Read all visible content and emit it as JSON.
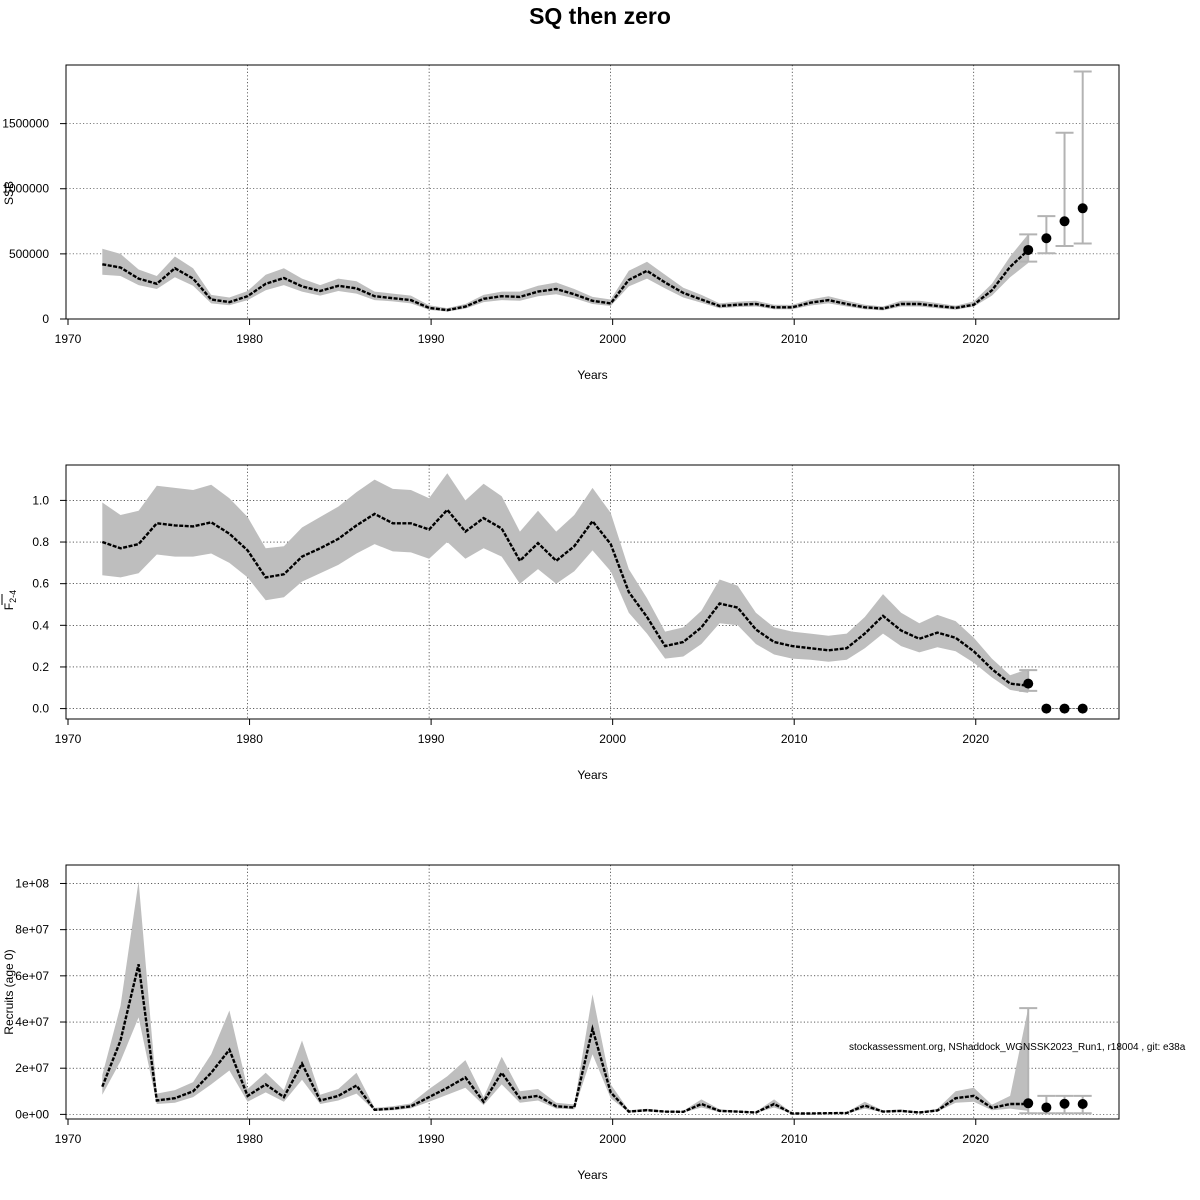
{
  "title": "SQ then zero",
  "credit": "stockassessment.org, NShaddock_WGNSSK2023_Run1, r18004 , git: e38a",
  "chart_data": [
    {
      "type": "line",
      "id": "ssb",
      "ylabel": "SSB",
      "xlabel": "Years",
      "xlim": [
        1970,
        2028
      ],
      "ylim": [
        0,
        1950000
      ],
      "grid": true,
      "xticks": [
        1970,
        1980,
        1990,
        2000,
        2010,
        2020
      ],
      "yticks": [
        0,
        500000,
        1000000,
        1500000
      ],
      "ytick_labels": [
        "0",
        "500000",
        "1000000",
        "1500000"
      ],
      "series": [
        {
          "x": [
            1972,
            1973,
            1974,
            1975,
            1976,
            1977,
            1978,
            1979,
            1980,
            1981,
            1982,
            1983,
            1984,
            1985,
            1986,
            1987,
            1988,
            1989,
            1990,
            1991,
            1992,
            1993,
            1994,
            1995,
            1996,
            1997,
            1998,
            1999,
            2000,
            2001,
            2002,
            2003,
            2004,
            2005,
            2006,
            2007,
            2008,
            2009,
            2010,
            2011,
            2012,
            2013,
            2014,
            2015,
            2016,
            2017,
            2018,
            2019,
            2020,
            2021,
            2022,
            2023
          ],
          "estimate": [
            420000,
            395000,
            310000,
            270000,
            390000,
            310000,
            150000,
            130000,
            175000,
            270000,
            315000,
            250000,
            215000,
            255000,
            235000,
            175000,
            160000,
            145000,
            85000,
            68000,
            95000,
            155000,
            175000,
            170000,
            210000,
            230000,
            190000,
            140000,
            120000,
            300000,
            370000,
            280000,
            200000,
            150000,
            100000,
            110000,
            115000,
            90000,
            90000,
            125000,
            145000,
            115000,
            90000,
            80000,
            115000,
            115000,
            100000,
            85000,
            110000,
            220000,
            400000,
            530000
          ],
          "lower": [
            340000,
            330000,
            260000,
            230000,
            320000,
            255000,
            120000,
            105000,
            145000,
            220000,
            260000,
            210000,
            180000,
            215000,
            195000,
            145000,
            135000,
            120000,
            70000,
            57000,
            80000,
            130000,
            145000,
            140000,
            175000,
            190000,
            160000,
            115000,
            100000,
            250000,
            310000,
            235000,
            165000,
            125000,
            83000,
            92000,
            96000,
            75000,
            75000,
            104000,
            120000,
            96000,
            75000,
            66000,
            96000,
            96000,
            83000,
            71000,
            95000,
            180000,
            320000,
            430000
          ],
          "upper": [
            540000,
            500000,
            380000,
            330000,
            480000,
            390000,
            185000,
            165000,
            215000,
            340000,
            390000,
            310000,
            260000,
            310000,
            290000,
            210000,
            195000,
            180000,
            105000,
            84000,
            115000,
            185000,
            210000,
            210000,
            255000,
            280000,
            230000,
            170000,
            150000,
            370000,
            440000,
            340000,
            240000,
            185000,
            120000,
            132000,
            140000,
            110000,
            108000,
            150000,
            175000,
            140000,
            110000,
            96000,
            140000,
            140000,
            122000,
            102000,
            135000,
            270000,
            480000,
            650000
          ]
        }
      ],
      "forecast": [
        {
          "year": 2023,
          "value": 530000,
          "low": 440000,
          "high": 650000
        },
        {
          "year": 2024,
          "value": 620000,
          "low": 505000,
          "high": 790000
        },
        {
          "year": 2025,
          "value": 750000,
          "low": 560000,
          "high": 1430000
        },
        {
          "year": 2026,
          "value": 850000,
          "low": 580000,
          "high": 1900000
        }
      ]
    },
    {
      "type": "line",
      "id": "fbar",
      "ylabel": "F",
      "ylabel_sub": "2-4",
      "xlabel": "Years",
      "xlim": [
        1970,
        2028
      ],
      "ylim": [
        -0.05,
        1.17
      ],
      "grid": true,
      "xticks": [
        1970,
        1980,
        1990,
        2000,
        2010,
        2020
      ],
      "yticks": [
        0,
        0.2,
        0.4,
        0.6,
        0.8,
        1.0
      ],
      "ytick_labels": [
        "0.0",
        "0.2",
        "0.4",
        "0.6",
        "0.8",
        "1.0"
      ],
      "series": [
        {
          "x": [
            1972,
            1973,
            1974,
            1975,
            1976,
            1977,
            1978,
            1979,
            1980,
            1981,
            1982,
            1983,
            1984,
            1985,
            1986,
            1987,
            1988,
            1989,
            1990,
            1991,
            1992,
            1993,
            1994,
            1995,
            1996,
            1997,
            1998,
            1999,
            2000,
            2001,
            2002,
            2003,
            2004,
            2005,
            2006,
            2007,
            2008,
            2009,
            2010,
            2011,
            2012,
            2013,
            2014,
            2015,
            2016,
            2017,
            2018,
            2019,
            2020,
            2021,
            2022,
            2023
          ],
          "estimate": [
            0.8,
            0.77,
            0.79,
            0.89,
            0.88,
            0.875,
            0.895,
            0.84,
            0.76,
            0.63,
            0.645,
            0.73,
            0.77,
            0.815,
            0.88,
            0.935,
            0.89,
            0.89,
            0.86,
            0.955,
            0.85,
            0.915,
            0.865,
            0.71,
            0.795,
            0.71,
            0.78,
            0.9,
            0.79,
            0.56,
            0.44,
            0.3,
            0.32,
            0.39,
            0.505,
            0.485,
            0.38,
            0.32,
            0.3,
            0.29,
            0.28,
            0.29,
            0.36,
            0.445,
            0.375,
            0.335,
            0.365,
            0.34,
            0.275,
            0.19,
            0.12,
            0.11
          ],
          "lower": [
            0.64,
            0.63,
            0.65,
            0.74,
            0.73,
            0.73,
            0.745,
            0.7,
            0.63,
            0.52,
            0.535,
            0.61,
            0.65,
            0.69,
            0.745,
            0.79,
            0.755,
            0.75,
            0.72,
            0.8,
            0.72,
            0.77,
            0.73,
            0.6,
            0.67,
            0.6,
            0.66,
            0.76,
            0.66,
            0.46,
            0.36,
            0.24,
            0.25,
            0.31,
            0.41,
            0.4,
            0.31,
            0.26,
            0.24,
            0.235,
            0.225,
            0.235,
            0.29,
            0.36,
            0.3,
            0.27,
            0.295,
            0.275,
            0.22,
            0.15,
            0.09,
            0.075
          ],
          "upper": [
            0.99,
            0.93,
            0.95,
            1.07,
            1.06,
            1.05,
            1.075,
            1.01,
            0.92,
            0.77,
            0.78,
            0.87,
            0.92,
            0.97,
            1.04,
            1.1,
            1.055,
            1.05,
            1.01,
            1.13,
            1.0,
            1.08,
            1.02,
            0.85,
            0.95,
            0.85,
            0.93,
            1.06,
            0.94,
            0.67,
            0.53,
            0.37,
            0.39,
            0.47,
            0.62,
            0.59,
            0.46,
            0.39,
            0.37,
            0.36,
            0.35,
            0.36,
            0.44,
            0.55,
            0.46,
            0.41,
            0.45,
            0.42,
            0.34,
            0.24,
            0.16,
            0.19
          ]
        }
      ],
      "forecast": [
        {
          "year": 2023,
          "value": 0.12,
          "low": 0.085,
          "high": 0.185
        },
        {
          "year": 2024,
          "value": 0.0,
          "low": 0.0,
          "high": 0.0
        },
        {
          "year": 2025,
          "value": 0.0,
          "low": 0.0,
          "high": 0.0
        },
        {
          "year": 2026,
          "value": 0.0,
          "low": 0.0,
          "high": 0.0
        }
      ]
    },
    {
      "type": "line",
      "id": "recruits",
      "ylabel": "Recruits (age 0)",
      "xlabel": "Years",
      "xlim": [
        1970,
        2028
      ],
      "ylim": [
        -2000000,
        108000000
      ],
      "grid": true,
      "xticks": [
        1970,
        1980,
        1990,
        2000,
        2010,
        2020
      ],
      "yticks": [
        0,
        20000000,
        40000000,
        60000000,
        80000000,
        100000000
      ],
      "ytick_labels": [
        "0e+00",
        "2e+07",
        "4e+07",
        "6e+07",
        "8e+07",
        "1e+08"
      ],
      "series": [
        {
          "x": [
            1972,
            1973,
            1974,
            1975,
            1976,
            1977,
            1978,
            1979,
            1980,
            1981,
            1982,
            1983,
            1984,
            1985,
            1986,
            1987,
            1988,
            1989,
            1990,
            1991,
            1992,
            1993,
            1994,
            1995,
            1996,
            1997,
            1998,
            1999,
            2000,
            2001,
            2002,
            2003,
            2004,
            2005,
            2006,
            2007,
            2008,
            2009,
            2010,
            2011,
            2012,
            2013,
            2014,
            2015,
            2016,
            2017,
            2018,
            2019,
            2020,
            2021,
            2022,
            2023
          ],
          "estimate": [
            12000000,
            32000000,
            65000000,
            6000000,
            7000000,
            10000000,
            18000000,
            28000000,
            8000000,
            13000000,
            7500000,
            22000000,
            6000000,
            8000000,
            12500000,
            2000000,
            2500000,
            3500000,
            7500000,
            11500000,
            16000000,
            5500000,
            18000000,
            7000000,
            8000000,
            3500000,
            3000000,
            37000000,
            9500000,
            1200000,
            1800000,
            1200000,
            1100000,
            4500000,
            1500000,
            1200000,
            800000,
            4500000,
            400000,
            400000,
            500000,
            600000,
            3800000,
            1200000,
            1500000,
            800000,
            1700000,
            7000000,
            8000000,
            2800000,
            4500000,
            4500000
          ],
          "lower": [
            8500000,
            23000000,
            42000000,
            4500000,
            5000000,
            7500000,
            13000000,
            19000000,
            5500000,
            9500000,
            5500000,
            15000000,
            4500000,
            6000000,
            9000000,
            1500000,
            1800000,
            2600000,
            5500000,
            8500000,
            11500000,
            4000000,
            13000000,
            5000000,
            6000000,
            2500000,
            2200000,
            26000000,
            7000000,
            800000,
            1300000,
            900000,
            800000,
            3000000,
            1000000,
            900000,
            600000,
            3000000,
            250000,
            250000,
            350000,
            400000,
            2500000,
            900000,
            1000000,
            600000,
            1200000,
            5000000,
            5500000,
            1800000,
            2500000,
            1500000
          ],
          "upper": [
            17000000,
            47000000,
            101000000,
            9000000,
            10500000,
            14000000,
            26000000,
            45000000,
            11000000,
            18000000,
            10500000,
            32000000,
            8500000,
            11000000,
            18000000,
            2800000,
            3500000,
            4700000,
            11000000,
            16500000,
            23500000,
            7500000,
            25000000,
            10000000,
            11000000,
            5000000,
            4300000,
            52000000,
            13000000,
            1800000,
            2400000,
            1600000,
            1500000,
            6500000,
            2200000,
            1600000,
            1100000,
            6500000,
            600000,
            600000,
            700000,
            900000,
            5500000,
            1700000,
            2100000,
            1100000,
            2400000,
            10000000,
            11500000,
            4200000,
            8000000,
            46000000
          ]
        }
      ],
      "forecast": [
        {
          "year": 2023,
          "value": 4800000,
          "low": 500000,
          "high": 46000000
        },
        {
          "year": 2024,
          "value": 3000000,
          "low": 500000,
          "high": 8000000
        },
        {
          "year": 2025,
          "value": 4600000,
          "low": 500000,
          "high": 8000000
        },
        {
          "year": 2026,
          "value": 4500000,
          "low": 500000,
          "high": 8000000
        }
      ]
    }
  ]
}
